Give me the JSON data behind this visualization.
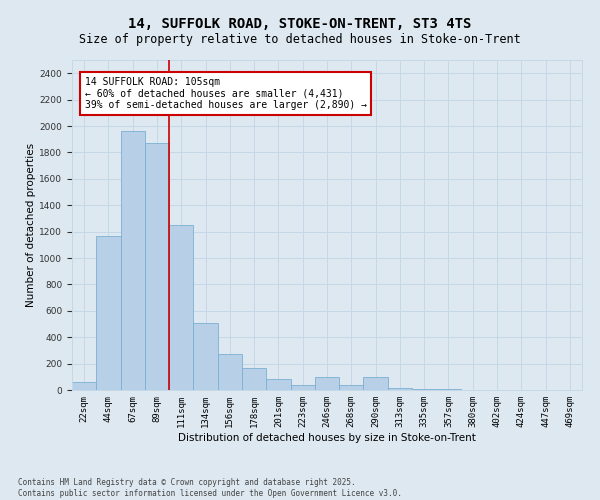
{
  "title": "14, SUFFOLK ROAD, STOKE-ON-TRENT, ST3 4TS",
  "subtitle": "Size of property relative to detached houses in Stoke-on-Trent",
  "xlabel": "Distribution of detached houses by size in Stoke-on-Trent",
  "ylabel": "Number of detached properties",
  "categories": [
    "22sqm",
    "44sqm",
    "67sqm",
    "89sqm",
    "111sqm",
    "134sqm",
    "156sqm",
    "178sqm",
    "201sqm",
    "223sqm",
    "246sqm",
    "268sqm",
    "290sqm",
    "313sqm",
    "335sqm",
    "357sqm",
    "380sqm",
    "402sqm",
    "424sqm",
    "447sqm",
    "469sqm"
  ],
  "values": [
    60,
    1170,
    1960,
    1870,
    1250,
    510,
    270,
    165,
    80,
    35,
    100,
    35,
    100,
    15,
    10,
    5,
    3,
    2,
    2,
    1,
    1
  ],
  "bar_color": "#b8cfe8",
  "bar_edge_color": "#7bafd4",
  "grid_color": "#c5d8e8",
  "background_color": "#dde8f0",
  "vline_color": "#cc0000",
  "annotation_text": "14 SUFFOLK ROAD: 105sqm\n← 60% of detached houses are smaller (4,431)\n39% of semi-detached houses are larger (2,890) →",
  "annotation_box_color": "#ffffff",
  "annotation_box_edge": "#cc0000",
  "ylim": [
    0,
    2500
  ],
  "yticks": [
    0,
    200,
    400,
    600,
    800,
    1000,
    1200,
    1400,
    1600,
    1800,
    2000,
    2200,
    2400
  ],
  "footer": "Contains HM Land Registry data © Crown copyright and database right 2025.\nContains public sector information licensed under the Open Government Licence v3.0.",
  "title_fontsize": 10,
  "subtitle_fontsize": 8.5,
  "axis_label_fontsize": 7.5,
  "tick_fontsize": 6.5,
  "annotation_fontsize": 7,
  "footer_fontsize": 5.5
}
